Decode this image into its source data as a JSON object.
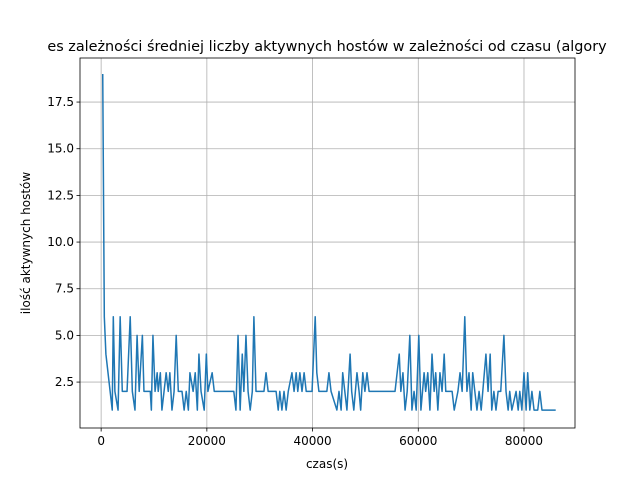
{
  "chart_data": {
    "type": "line",
    "title": "es zależności średniej liczby aktywnych hostów w zależności od czasu (algory",
    "xlabel": "czas(s)",
    "ylabel": "ilość aktywnych hostów",
    "color": "#1f77b4",
    "grid": true,
    "xlim": [
      -4000,
      89650
    ],
    "ylim": [
      0.04,
      19.86
    ],
    "xticks": [
      0,
      20000,
      40000,
      60000,
      80000
    ],
    "yticks": [
      2.5,
      {
        "value": 5,
        "label": "5.0"
      },
      7.5,
      {
        "value": 10,
        "label": "10.0"
      },
      12.5,
      {
        "value": 15,
        "label": "15.0"
      },
      17.5
    ],
    "x": [
      300,
      600,
      900,
      1300,
      1700,
      2100,
      2300,
      2600,
      3200,
      3600,
      4000,
      4900,
      5500,
      5900,
      6400,
      6800,
      7200,
      7800,
      8100,
      9300,
      9500,
      9800,
      10200,
      10600,
      10800,
      11200,
      11500,
      11900,
      12300,
      12700,
      13000,
      13400,
      13800,
      14200,
      14600,
      15300,
      15700,
      16100,
      16500,
      16800,
      17400,
      17800,
      18200,
      18500,
      18900,
      19500,
      19900,
      20200,
      21000,
      21400,
      25100,
      25500,
      25900,
      26300,
      26700,
      27000,
      27400,
      27800,
      28200,
      28600,
      28900,
      29300,
      30800,
      31200,
      31600,
      33100,
      33500,
      33800,
      34200,
      34600,
      35000,
      35400,
      36100,
      36500,
      36900,
      37200,
      37600,
      38000,
      38400,
      38800,
      39900,
      40500,
      40800,
      41200,
      42700,
      43100,
      43500,
      44600,
      45000,
      45400,
      45700,
      46100,
      46500,
      47100,
      47400,
      47800,
      48400,
      48800,
      49100,
      49500,
      49900,
      50300,
      50700,
      55600,
      56400,
      56700,
      57100,
      57500,
      57900,
      58400,
      58800,
      59200,
      59600,
      60100,
      60500,
      61100,
      61400,
      61800,
      62200,
      62600,
      63000,
      63300,
      63700,
      64100,
      64500,
      64900,
      65200,
      66400,
      66800,
      67500,
      67900,
      68300,
      68800,
      69200,
      69600,
      70000,
      70300,
      70700,
      71100,
      71500,
      71900,
      72200,
      72800,
      73200,
      73600,
      73900,
      74300,
      74700,
      75100,
      75600,
      76200,
      76600,
      77000,
      77300,
      77700,
      78500,
      78900,
      79200,
      79600,
      80000,
      80400,
      80700,
      81100,
      81500,
      81900,
      82600,
      83000,
      83400,
      86000
    ],
    "values": [
      19,
      6,
      4,
      3,
      2,
      1,
      6,
      2,
      1,
      6,
      2,
      2,
      6,
      2,
      1,
      5,
      2,
      5,
      2,
      2,
      1,
      5,
      2,
      3,
      2,
      3,
      1,
      2,
      3,
      2,
      3,
      1,
      2,
      5,
      2,
      2,
      1,
      2,
      1,
      3,
      2,
      3,
      1,
      4,
      2,
      1,
      4,
      2,
      3,
      2,
      2,
      1,
      5,
      1,
      4,
      2,
      5,
      2,
      1,
      2,
      6,
      2,
      2,
      3,
      2,
      2,
      1,
      2,
      1,
      2,
      1,
      2,
      3,
      2,
      3,
      2,
      3,
      2,
      3,
      2,
      2,
      6,
      3,
      2,
      2,
      3,
      2,
      1,
      2,
      1,
      3,
      2,
      1,
      4,
      2,
      1,
      3,
      2,
      1,
      3,
      2,
      3,
      2,
      2,
      4,
      2,
      3,
      1,
      2,
      5,
      1,
      2,
      1,
      5,
      1,
      3,
      2,
      3,
      1,
      4,
      2,
      3,
      1,
      3,
      2,
      4,
      2,
      2,
      1,
      2,
      3,
      2,
      6,
      2,
      3,
      1,
      3,
      2,
      1,
      2,
      1,
      2,
      4,
      2,
      4,
      1,
      2,
      1,
      2,
      2,
      5,
      2,
      1,
      2,
      1,
      2,
      1,
      2,
      1,
      3,
      1,
      3,
      1,
      2,
      1,
      1,
      2,
      1,
      1
    ]
  }
}
